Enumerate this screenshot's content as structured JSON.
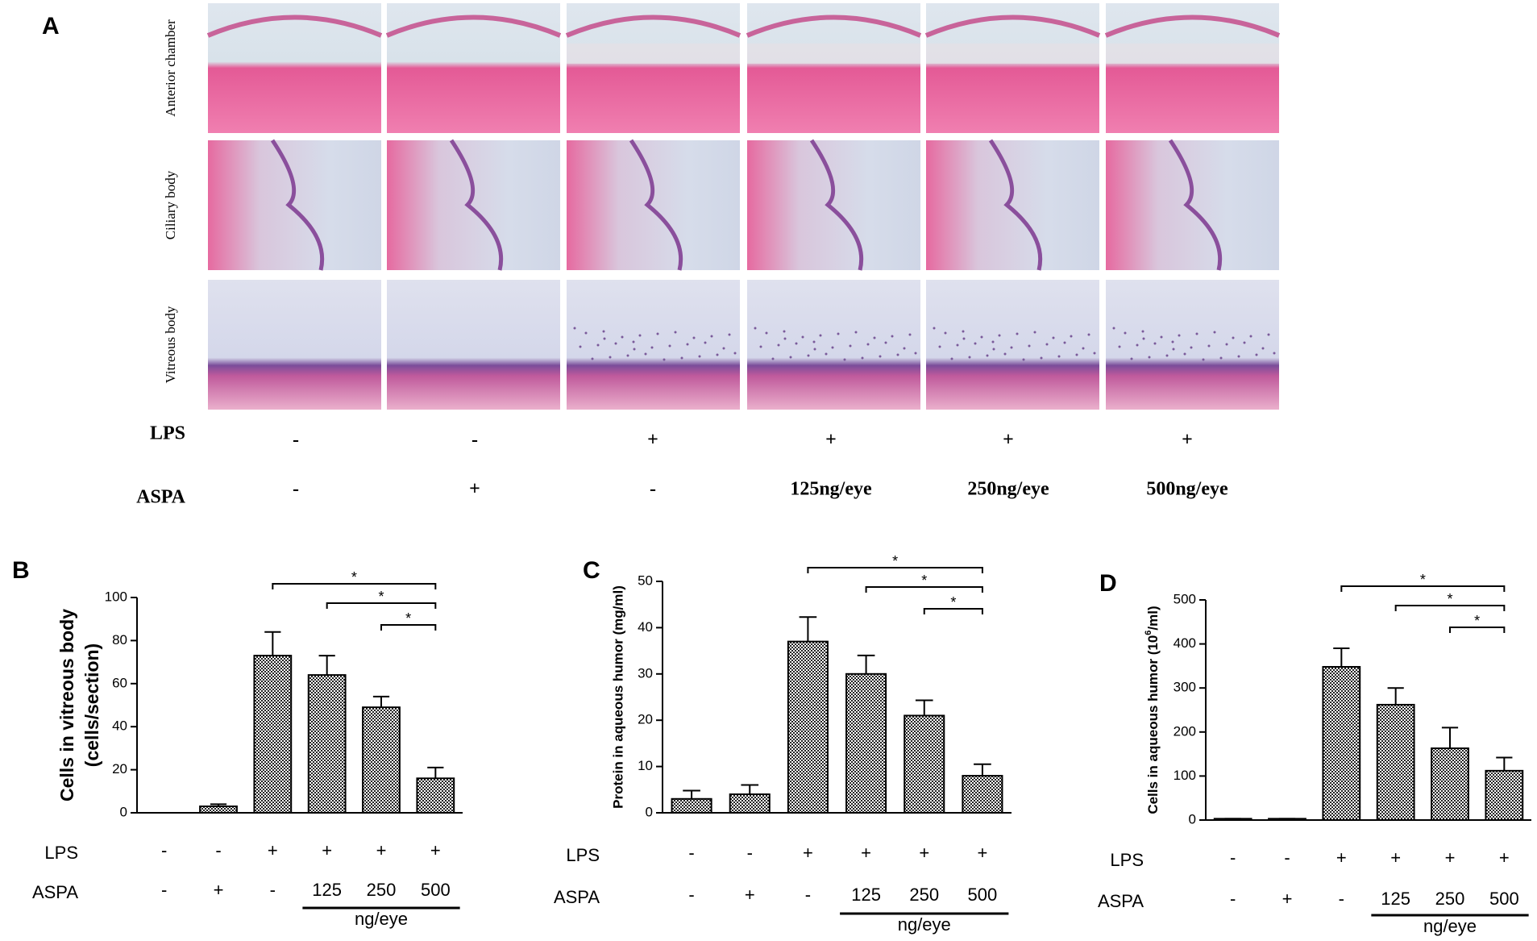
{
  "panel_a": {
    "label": "A",
    "row_labels": [
      "Anterior chamber",
      "Ciliary body",
      "Vitreous body"
    ],
    "treatments": [
      {
        "name": "LPS",
        "levels": [
          "-",
          "-",
          "+",
          "+",
          "+",
          "+"
        ]
      },
      {
        "name": "ASPA",
        "levels": [
          "-",
          "+",
          "-",
          "125ng/eye",
          "250ng/eye",
          "500ng/eye"
        ]
      }
    ]
  },
  "chart_data": [
    {
      "type": "bar",
      "panel_label": "B",
      "ylabel": [
        "Cells in vitreous body",
        "(cells/section)"
      ],
      "series": [
        {
          "color": "#222222",
          "values": [
            0,
            3,
            73,
            64,
            49,
            16
          ],
          "errors": [
            0,
            1,
            11,
            9,
            5,
            5
          ]
        }
      ],
      "ylim": [
        0,
        100
      ],
      "yticks": [
        0,
        20,
        40,
        60,
        80,
        100
      ],
      "treatments": [
        {
          "name": "LPS",
          "levels": [
            "-",
            "-",
            "+",
            "+",
            "+",
            "+"
          ]
        },
        {
          "name": "ASPA",
          "levels": [
            "-",
            "+",
            "-",
            "125",
            "250",
            "500"
          ],
          "unit": "ng/eye"
        }
      ],
      "significance": [
        {
          "from": 2,
          "to": 5,
          "label": "*"
        },
        {
          "from": 3,
          "to": 5,
          "label": "*"
        },
        {
          "from": 4,
          "to": 5,
          "label": "*"
        }
      ]
    },
    {
      "type": "bar",
      "panel_label": "C",
      "ylabel": [
        "Protein in aqueous humor (mg/ml)"
      ],
      "series": [
        {
          "color": "#222222",
          "values": [
            3,
            4,
            37,
            30,
            21,
            8
          ],
          "errors": [
            1.8,
            2,
            5.3,
            4,
            3.3,
            2.5
          ]
        }
      ],
      "ylim": [
        0,
        50
      ],
      "yticks": [
        0,
        10,
        20,
        30,
        40,
        50
      ],
      "treatments": [
        {
          "name": "LPS",
          "levels": [
            "-",
            "-",
            "+",
            "+",
            "+",
            "+"
          ]
        },
        {
          "name": "ASPA",
          "levels": [
            "-",
            "+",
            "-",
            "125",
            "250",
            "500"
          ],
          "unit": "ng/eye"
        }
      ],
      "significance": [
        {
          "from": 2,
          "to": 5,
          "label": "*"
        },
        {
          "from": 3,
          "to": 5,
          "label": "*"
        },
        {
          "from": 4,
          "to": 5,
          "label": "*"
        }
      ]
    },
    {
      "type": "bar",
      "panel_label": "D",
      "ylabel": [
        [
          "Cells in aqueous humor (10",
          "6",
          "/ml)"
        ]
      ],
      "series": [
        {
          "color": "#222222",
          "values": [
            3,
            3,
            348,
            262,
            163,
            112
          ],
          "errors": [
            0,
            0,
            42,
            38,
            47,
            30
          ]
        }
      ],
      "ylim": [
        0,
        500
      ],
      "yticks": [
        0,
        100,
        200,
        300,
        400,
        500
      ],
      "treatments": [
        {
          "name": "LPS",
          "levels": [
            "-",
            "-",
            "+",
            "+",
            "+",
            "+"
          ]
        },
        {
          "name": "ASPA",
          "levels": [
            "-",
            "+",
            "-",
            "125",
            "250",
            "500"
          ],
          "unit": "ng/eye"
        }
      ],
      "significance": [
        {
          "from": 2,
          "to": 5,
          "label": "*"
        },
        {
          "from": 3,
          "to": 5,
          "label": "*"
        },
        {
          "from": 4,
          "to": 5,
          "label": "*"
        }
      ]
    }
  ]
}
